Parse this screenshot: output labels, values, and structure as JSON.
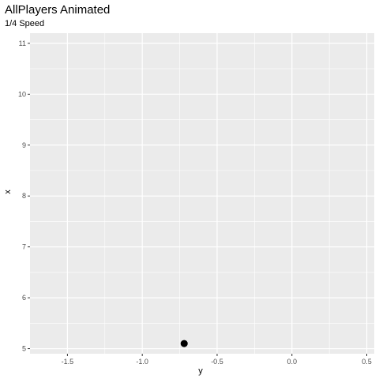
{
  "chart_data": {
    "type": "scatter",
    "title": "AllPlayers Animated",
    "subtitle": "1/4 Speed",
    "xlabel": "y",
    "ylabel": "x",
    "xlim": [
      -1.75,
      0.55
    ],
    "ylim": [
      4.9,
      11.2
    ],
    "x_ticks": [
      -1.5,
      -1.0,
      -0.5,
      0.0,
      0.5
    ],
    "x_tick_labels": [
      "-1.5",
      "-1.0",
      "-0.5",
      "0.0",
      "0.5"
    ],
    "y_ticks": [
      5,
      6,
      7,
      8,
      9,
      10,
      11
    ],
    "y_tick_labels": [
      "5",
      "6",
      "7",
      "8",
      "9",
      "10",
      "11"
    ],
    "grid": true,
    "points": [
      {
        "x": -0.72,
        "y": 5.1
      }
    ],
    "colors": {
      "panel_background": "#EBEBEB",
      "grid_major": "#FFFFFF",
      "grid_minor": "#F5F5F5",
      "point": "#000000",
      "tick_text": "#4D4D4D",
      "tick_mark": "#333333"
    }
  }
}
